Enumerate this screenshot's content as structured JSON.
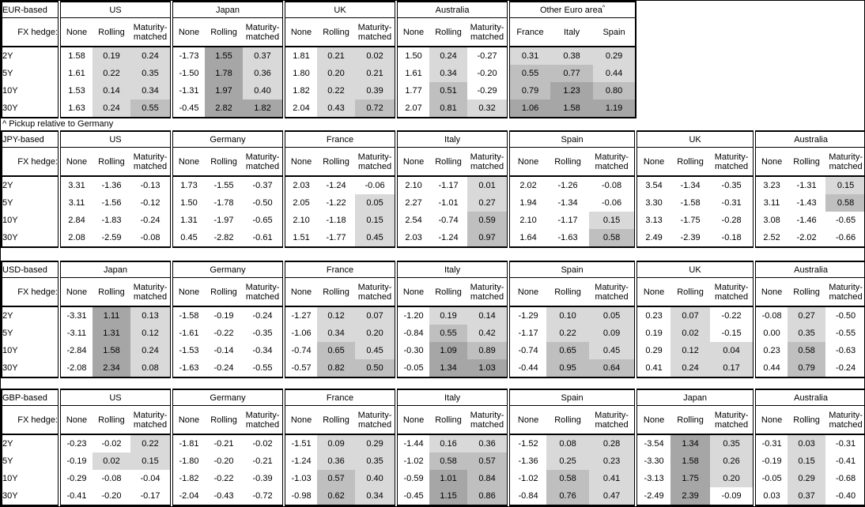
{
  "page": {
    "footnote": "^ Pickup relative to Germany"
  },
  "heat_legend": {
    "unshaded": "#ffffff",
    "light": "#d9d9d9",
    "medium": "#bfbfbf",
    "dark": "#a6a6a6",
    "rule": "hedged-pickup cells shaded by value: >0 light, >=0.5 medium, >1.0 dark; None columns and negative values unshaded"
  },
  "chart_data": {
    "type": "table",
    "row_axis_label": "FX hedge:",
    "row_labels": [
      "2Y",
      "5Y",
      "10Y",
      "30Y"
    ],
    "sections": [
      {
        "label": "EUR-based",
        "groups": [
          {
            "name": "US",
            "columns": [
              "None",
              "Rolling",
              "Maturity-matched"
            ],
            "shaded_columns": [
              1,
              2
            ],
            "rows": [
              [
                "1.58",
                "0.19",
                "0.24"
              ],
              [
                "1.61",
                "0.22",
                "0.35"
              ],
              [
                "1.53",
                "0.14",
                "0.34"
              ],
              [
                "1.63",
                "0.24",
                "0.55"
              ]
            ]
          },
          {
            "name": "Japan",
            "columns": [
              "None",
              "Rolling",
              "Maturity-matched"
            ],
            "shaded_columns": [
              1,
              2
            ],
            "rows": [
              [
                "-1.73",
                "1.55",
                "0.37"
              ],
              [
                "-1.50",
                "1.78",
                "0.36"
              ],
              [
                "-1.31",
                "1.97",
                "0.40"
              ],
              [
                "-0.45",
                "2.82",
                "1.82"
              ]
            ]
          },
          {
            "name": "UK",
            "columns": [
              "None",
              "Rolling",
              "Maturity-matched"
            ],
            "shaded_columns": [
              1,
              2
            ],
            "rows": [
              [
                "1.81",
                "0.21",
                "0.02"
              ],
              [
                "1.80",
                "0.20",
                "0.21"
              ],
              [
                "1.82",
                "0.22",
                "0.39"
              ],
              [
                "2.04",
                "0.43",
                "0.72"
              ]
            ]
          },
          {
            "name": "Australia",
            "columns": [
              "None",
              "Rolling",
              "Maturity-matched"
            ],
            "shaded_columns": [
              1,
              2
            ],
            "rows": [
              [
                "1.50",
                "0.24",
                "-0.27"
              ],
              [
                "1.61",
                "0.34",
                "-0.20"
              ],
              [
                "1.77",
                "0.51",
                "-0.29"
              ],
              [
                "2.07",
                "0.81",
                "0.32"
              ]
            ]
          },
          {
            "name": "Other Euro area",
            "sup": "^",
            "columns": [
              "France",
              "Italy",
              "Spain"
            ],
            "shaded_columns": [
              0,
              1,
              2
            ],
            "rows": [
              [
                "0.31",
                "0.38",
                "0.29"
              ],
              [
                "0.55",
                "0.77",
                "0.44"
              ],
              [
                "0.79",
                "1.23",
                "0.80"
              ],
              [
                "1.06",
                "1.58",
                "1.19"
              ]
            ]
          }
        ]
      },
      {
        "label": "JPY-based",
        "groups": [
          {
            "name": "US",
            "columns": [
              "None",
              "Rolling",
              "Maturity-matched"
            ],
            "shaded_columns": [
              1,
              2
            ],
            "rows": [
              [
                "3.31",
                "-1.36",
                "-0.13"
              ],
              [
                "3.11",
                "-1.56",
                "-0.12"
              ],
              [
                "2.84",
                "-1.83",
                "-0.24"
              ],
              [
                "2.08",
                "-2.59",
                "-0.08"
              ]
            ]
          },
          {
            "name": "Germany",
            "columns": [
              "None",
              "Rolling",
              "Maturity-matched"
            ],
            "shaded_columns": [
              1,
              2
            ],
            "rows": [
              [
                "1.73",
                "-1.55",
                "-0.37"
              ],
              [
                "1.50",
                "-1.78",
                "-0.50"
              ],
              [
                "1.31",
                "-1.97",
                "-0.65"
              ],
              [
                "0.45",
                "-2.82",
                "-0.61"
              ]
            ]
          },
          {
            "name": "France",
            "columns": [
              "None",
              "Rolling",
              "Maturity-matched"
            ],
            "shaded_columns": [
              1,
              2
            ],
            "rows": [
              [
                "2.03",
                "-1.24",
                "-0.06"
              ],
              [
                "2.05",
                "-1.22",
                "0.05"
              ],
              [
                "2.10",
                "-1.18",
                "0.15"
              ],
              [
                "1.51",
                "-1.77",
                "0.45"
              ]
            ]
          },
          {
            "name": "Italy",
            "columns": [
              "None",
              "Rolling",
              "Maturity-matched"
            ],
            "shaded_columns": [
              1,
              2
            ],
            "rows": [
              [
                "2.10",
                "-1.17",
                "0.01"
              ],
              [
                "2.27",
                "-1.01",
                "0.27"
              ],
              [
                "2.54",
                "-0.74",
                "0.59"
              ],
              [
                "2.03",
                "-1.24",
                "0.97"
              ]
            ]
          },
          {
            "name": "Spain",
            "columns": [
              "None",
              "Rolling",
              "Maturity-matched"
            ],
            "shaded_columns": [
              1,
              2
            ],
            "rows": [
              [
                "2.02",
                "-1.26",
                "-0.08"
              ],
              [
                "1.94",
                "-1.34",
                "-0.06"
              ],
              [
                "2.10",
                "-1.17",
                "0.15"
              ],
              [
                "1.64",
                "-1.63",
                "0.58"
              ]
            ]
          },
          {
            "name": "UK",
            "columns": [
              "None",
              "Rolling",
              "Maturity-matched"
            ],
            "shaded_columns": [
              1,
              2
            ],
            "rows": [
              [
                "3.54",
                "-1.34",
                "-0.35"
              ],
              [
                "3.30",
                "-1.58",
                "-0.31"
              ],
              [
                "3.13",
                "-1.75",
                "-0.28"
              ],
              [
                "2.49",
                "-2.39",
                "-0.18"
              ]
            ]
          },
          {
            "name": "Australia",
            "columns": [
              "None",
              "Rolling",
              "Maturity-matched"
            ],
            "shaded_columns": [
              1,
              2
            ],
            "rows": [
              [
                "3.23",
                "-1.31",
                "0.15"
              ],
              [
                "3.11",
                "-1.43",
                "0.58"
              ],
              [
                "3.08",
                "-1.46",
                "-0.65"
              ],
              [
                "2.52",
                "-2.02",
                "-0.66"
              ]
            ]
          }
        ]
      },
      {
        "label": "USD-based",
        "groups": [
          {
            "name": "Japan",
            "columns": [
              "None",
              "Rolling",
              "Maturity-matched"
            ],
            "shaded_columns": [
              1,
              2
            ],
            "rows": [
              [
                "-3.31",
                "1.11",
                "0.13"
              ],
              [
                "-3.11",
                "1.31",
                "0.12"
              ],
              [
                "-2.84",
                "1.58",
                "0.24"
              ],
              [
                "-2.08",
                "2.34",
                "0.08"
              ]
            ]
          },
          {
            "name": "Germany",
            "columns": [
              "None",
              "Rolling",
              "Maturity-matched"
            ],
            "shaded_columns": [
              1,
              2
            ],
            "rows": [
              [
                "-1.58",
                "-0.19",
                "-0.24"
              ],
              [
                "-1.61",
                "-0.22",
                "-0.35"
              ],
              [
                "-1.53",
                "-0.14",
                "-0.34"
              ],
              [
                "-1.63",
                "-0.24",
                "-0.55"
              ]
            ]
          },
          {
            "name": "France",
            "columns": [
              "None",
              "Rolling",
              "Maturity-matched"
            ],
            "shaded_columns": [
              1,
              2
            ],
            "rows": [
              [
                "-1.27",
                "0.12",
                "0.07"
              ],
              [
                "-1.06",
                "0.34",
                "0.20"
              ],
              [
                "-0.74",
                "0.65",
                "0.45"
              ],
              [
                "-0.57",
                "0.82",
                "0.50"
              ]
            ]
          },
          {
            "name": "Italy",
            "columns": [
              "None",
              "Rolling",
              "Maturity-matched"
            ],
            "shaded_columns": [
              1,
              2
            ],
            "rows": [
              [
                "-1.20",
                "0.19",
                "0.14"
              ],
              [
                "-0.84",
                "0.55",
                "0.42"
              ],
              [
                "-0.30",
                "1.09",
                "0.89"
              ],
              [
                "-0.05",
                "1.34",
                "1.03"
              ]
            ]
          },
          {
            "name": "Spain",
            "columns": [
              "None",
              "Rolling",
              "Maturity-matched"
            ],
            "shaded_columns": [
              1,
              2
            ],
            "rows": [
              [
                "-1.29",
                "0.10",
                "0.05"
              ],
              [
                "-1.17",
                "0.22",
                "0.09"
              ],
              [
                "-0.74",
                "0.65",
                "0.45"
              ],
              [
                "-0.44",
                "0.95",
                "0.64"
              ]
            ]
          },
          {
            "name": "UK",
            "columns": [
              "None",
              "Rolling",
              "Maturity-matched"
            ],
            "shaded_columns": [
              1,
              2
            ],
            "rows": [
              [
                "0.23",
                "0.07",
                "-0.22"
              ],
              [
                "0.19",
                "0.02",
                "-0.15"
              ],
              [
                "0.29",
                "0.12",
                "0.04"
              ],
              [
                "0.41",
                "0.24",
                "0.17"
              ]
            ]
          },
          {
            "name": "Australia",
            "columns": [
              "None",
              "Rolling",
              "Maturity-matched"
            ],
            "shaded_columns": [
              1,
              2
            ],
            "rows": [
              [
                "-0.08",
                "0.27",
                "-0.50"
              ],
              [
                "0.00",
                "0.35",
                "-0.55"
              ],
              [
                "0.23",
                "0.58",
                "-0.63"
              ],
              [
                "0.44",
                "0.79",
                "-0.24"
              ]
            ]
          }
        ]
      },
      {
        "label": "GBP-based",
        "groups": [
          {
            "name": "US",
            "columns": [
              "None",
              "Rolling",
              "Maturity-matched"
            ],
            "shaded_columns": [
              1,
              2
            ],
            "rows": [
              [
                "-0.23",
                "-0.02",
                "0.22"
              ],
              [
                "-0.19",
                "0.02",
                "0.15"
              ],
              [
                "-0.29",
                "-0.08",
                "-0.04"
              ],
              [
                "-0.41",
                "-0.20",
                "-0.17"
              ]
            ]
          },
          {
            "name": "Germany",
            "columns": [
              "None",
              "Rolling",
              "Maturity-matched"
            ],
            "shaded_columns": [
              1,
              2
            ],
            "rows": [
              [
                "-1.81",
                "-0.21",
                "-0.02"
              ],
              [
                "-1.80",
                "-0.20",
                "-0.21"
              ],
              [
                "-1.82",
                "-0.22",
                "-0.39"
              ],
              [
                "-2.04",
                "-0.43",
                "-0.72"
              ]
            ]
          },
          {
            "name": "France",
            "columns": [
              "None",
              "Rolling",
              "Maturity-matched"
            ],
            "shaded_columns": [
              1,
              2
            ],
            "rows": [
              [
                "-1.51",
                "0.09",
                "0.29"
              ],
              [
                "-1.24",
                "0.36",
                "0.35"
              ],
              [
                "-1.03",
                "0.57",
                "0.40"
              ],
              [
                "-0.98",
                "0.62",
                "0.34"
              ]
            ]
          },
          {
            "name": "Italy",
            "columns": [
              "None",
              "Rolling",
              "Maturity-matched"
            ],
            "shaded_columns": [
              1,
              2
            ],
            "rows": [
              [
                "-1.44",
                "0.16",
                "0.36"
              ],
              [
                "-1.02",
                "0.58",
                "0.57"
              ],
              [
                "-0.59",
                "1.01",
                "0.84"
              ],
              [
                "-0.45",
                "1.15",
                "0.86"
              ]
            ]
          },
          {
            "name": "Spain",
            "columns": [
              "None",
              "Rolling",
              "Maturity-matched"
            ],
            "shaded_columns": [
              1,
              2
            ],
            "rows": [
              [
                "-1.52",
                "0.08",
                "0.28"
              ],
              [
                "-1.36",
                "0.25",
                "0.23"
              ],
              [
                "-1.02",
                "0.58",
                "0.41"
              ],
              [
                "-0.84",
                "0.76",
                "0.47"
              ]
            ]
          },
          {
            "name": "Japan",
            "columns": [
              "None",
              "Rolling",
              "Maturity-matched"
            ],
            "shaded_columns": [
              1,
              2
            ],
            "rows": [
              [
                "-3.54",
                "1.34",
                "0.35"
              ],
              [
                "-3.30",
                "1.58",
                "0.26"
              ],
              [
                "-3.13",
                "1.75",
                "0.20"
              ],
              [
                "-2.49",
                "2.39",
                "-0.09"
              ]
            ]
          },
          {
            "name": "Australia",
            "columns": [
              "None",
              "Rolling",
              "Maturity-matched"
            ],
            "shaded_columns": [
              1,
              2
            ],
            "rows": [
              [
                "-0.31",
                "0.03",
                "-0.31"
              ],
              [
                "-0.19",
                "0.15",
                "-0.41"
              ],
              [
                "-0.05",
                "0.29",
                "-0.68"
              ],
              [
                "0.03",
                "0.37",
                "-0.40"
              ]
            ]
          }
        ]
      }
    ]
  }
}
